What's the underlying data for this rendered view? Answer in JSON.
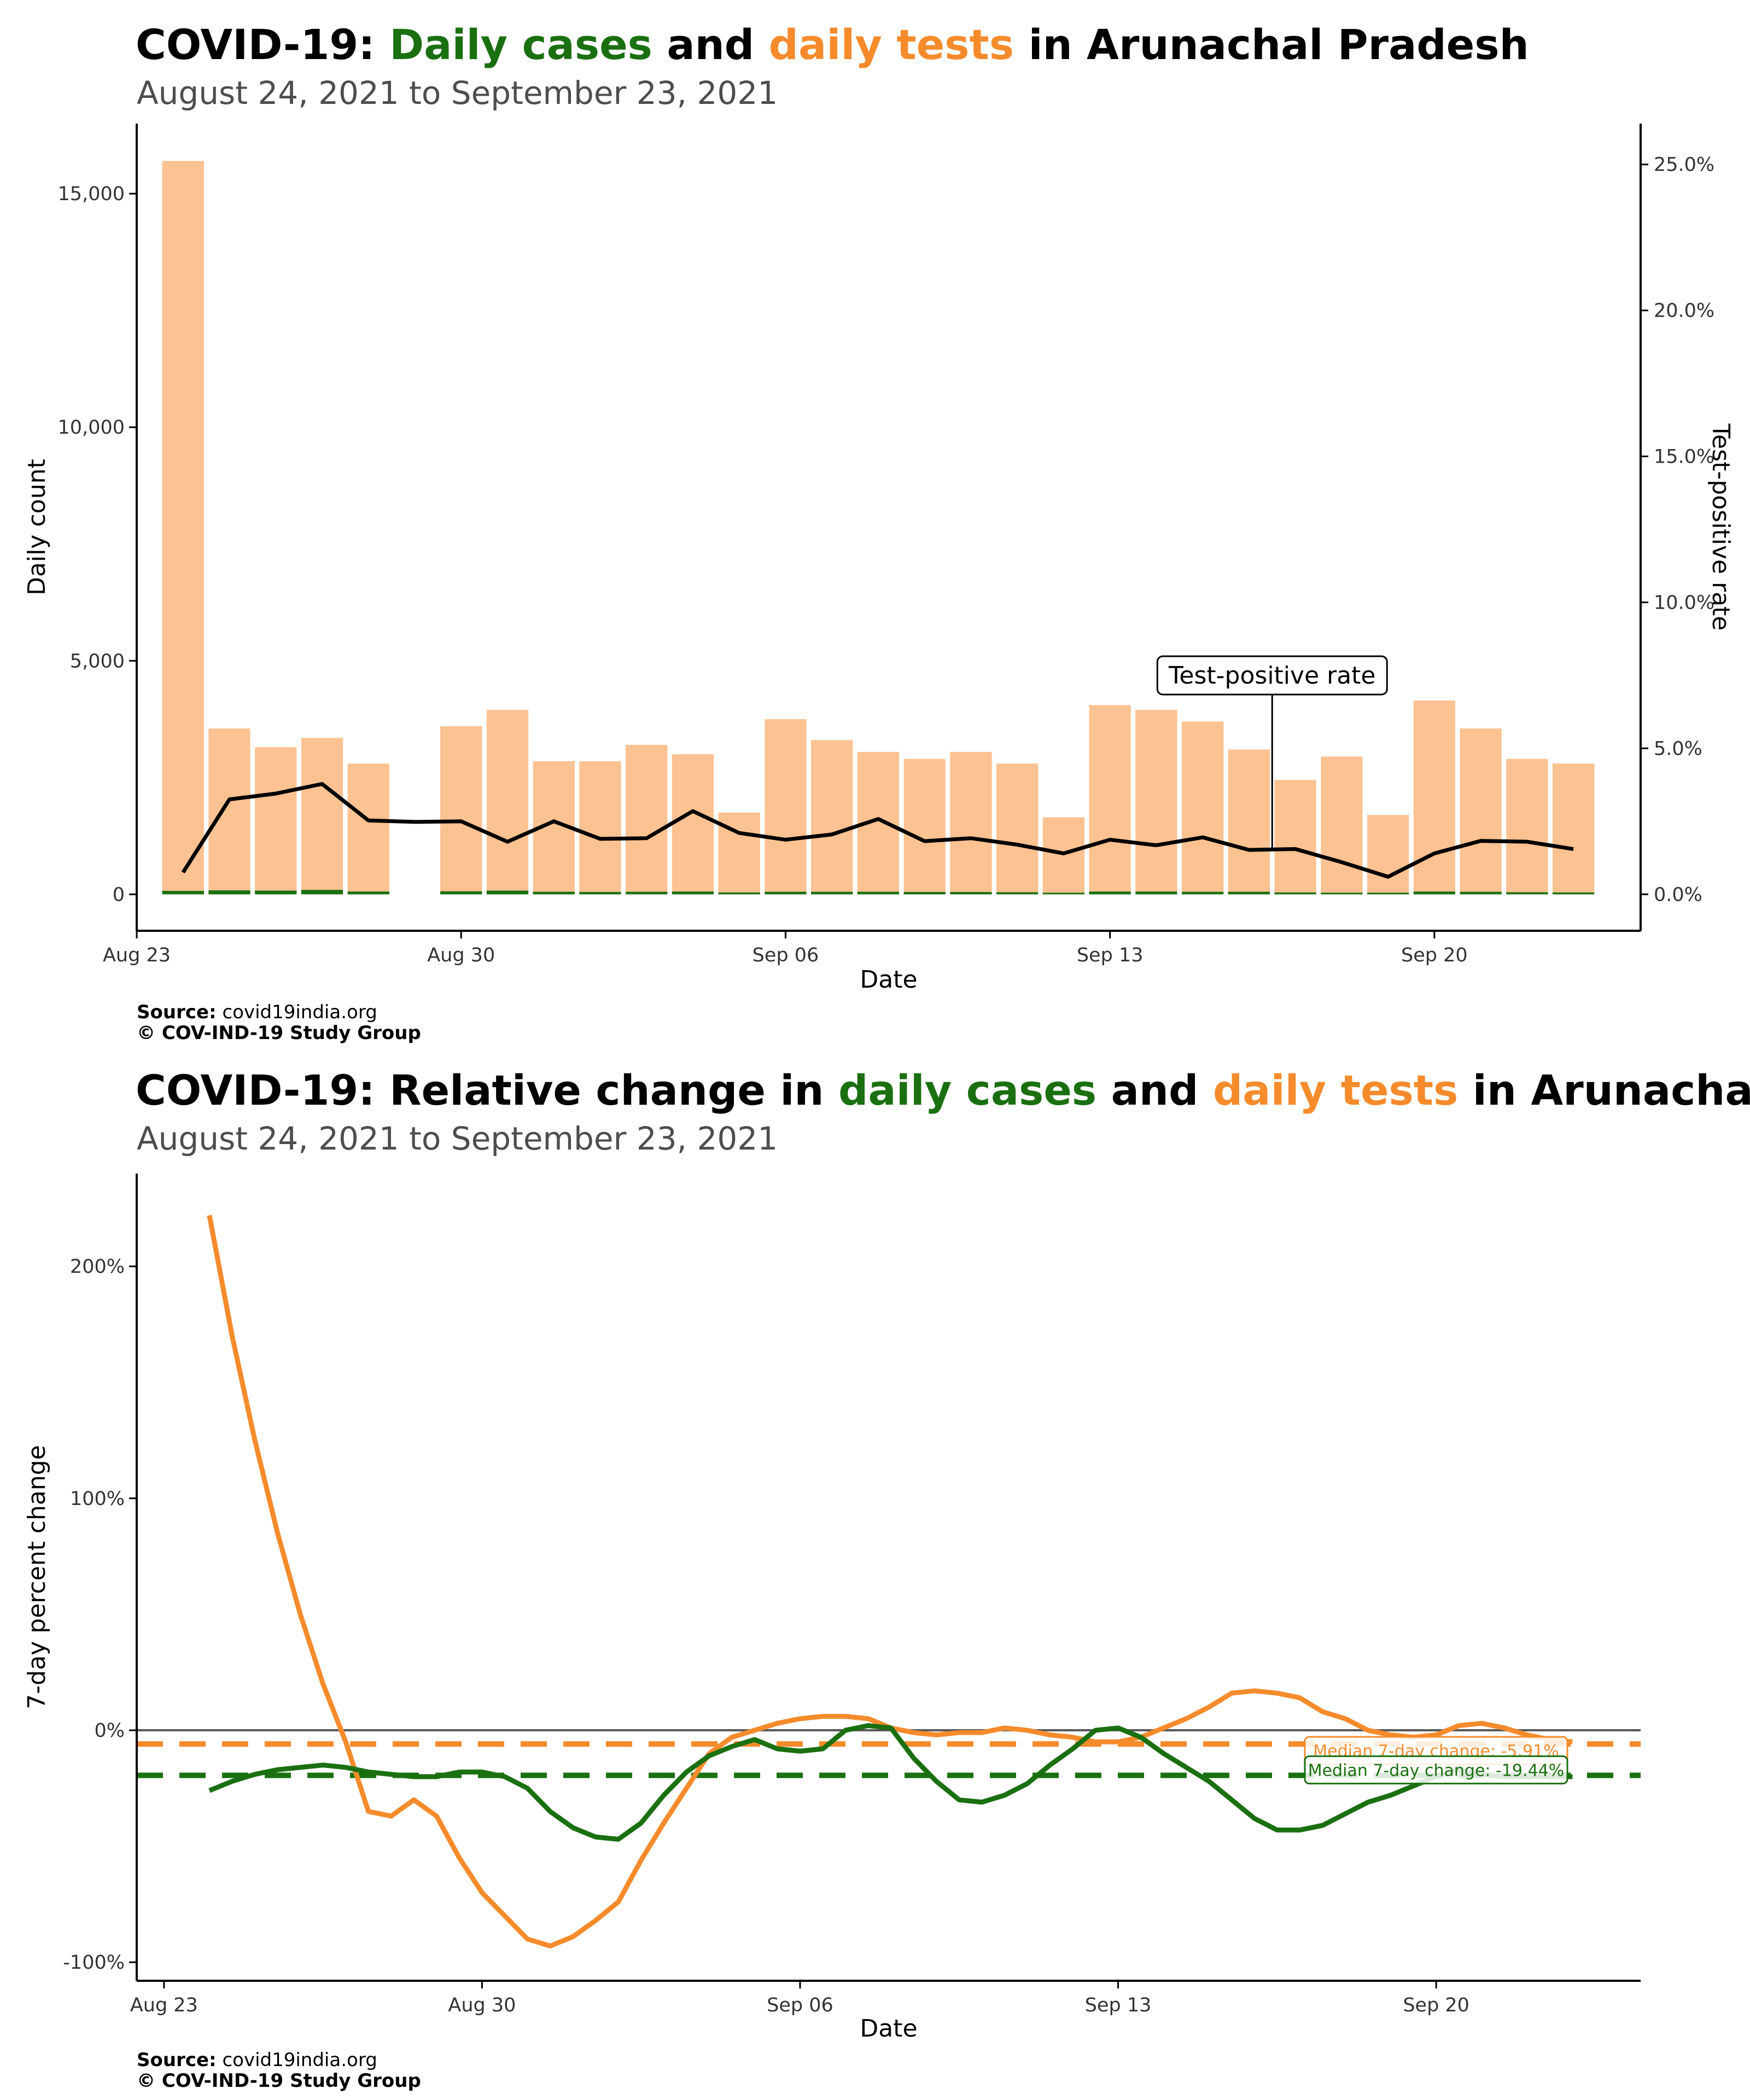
{
  "colors": {
    "cases": "#1a7010",
    "tests": "#f68b2c",
    "tests_bar": "#fdc291",
    "tpr": "#000000"
  },
  "top": {
    "title_parts": [
      {
        "text": "COVID-19: ",
        "color": "#000000"
      },
      {
        "text": "Daily cases",
        "color": "#1a7010"
      },
      {
        "text": " and ",
        "color": "#000000"
      },
      {
        "text": "daily tests",
        "color": "#f68b2c"
      },
      {
        "text": " in Arunachal Pradesh",
        "color": "#000000"
      }
    ],
    "subtitle": "August 24, 2021 to September 23, 2021",
    "source_label": "Source:",
    "source_value": " covid19india.org",
    "copyright": "© COV-IND-19 Study Group"
  },
  "bottom": {
    "title_parts": [
      {
        "text": "COVID-19: Relative change in ",
        "color": "#000000"
      },
      {
        "text": "daily cases",
        "color": "#1a7010"
      },
      {
        "text": " and ",
        "color": "#000000"
      },
      {
        "text": "daily tests",
        "color": "#f68b2c"
      },
      {
        "text": " in Arunachal Pradesh",
        "color": "#000000"
      }
    ],
    "subtitle": "August 24, 2021 to September 23, 2021",
    "source_label": "Source:",
    "source_value": " covid19india.org",
    "copyright": "© COV-IND-19 Study Group"
  },
  "chart_data": [
    {
      "type": "bar",
      "xlabel": "Date",
      "ylabel": "Daily count",
      "y2label": "Test-positive rate",
      "ylim": [
        -780,
        16500
      ],
      "y2lim": [
        -0.0125,
        0.264
      ],
      "y_ticks": [
        0,
        5000,
        10000,
        15000
      ],
      "y_tick_labels": [
        "0",
        "5,000",
        "10,000",
        "15,000"
      ],
      "y2_ticks": [
        0,
        0.05,
        0.1,
        0.15,
        0.2,
        0.25
      ],
      "y2_tick_labels": [
        "0.0%",
        "5.0%",
        "10.0%",
        "15.0%",
        "20.0%",
        "25.0%"
      ],
      "x_start": "Aug 23",
      "x_ticks": [
        0,
        7,
        14,
        21,
        28
      ],
      "x_tick_labels": [
        "Aug 23",
        "Aug 30",
        "Sep 06",
        "Sep 13",
        "Sep 20"
      ],
      "annotation": {
        "text": "Test-positive rate",
        "day": 24.5,
        "tpr": 0.0155
      },
      "days": [
        1,
        2,
        3,
        4,
        5,
        6,
        7,
        8,
        9,
        10,
        11,
        12,
        13,
        14,
        15,
        16,
        17,
        18,
        19,
        20,
        21,
        22,
        23,
        24,
        25,
        26,
        27,
        28,
        29,
        30,
        31
      ],
      "dates": [
        "Aug 24",
        "Aug 25",
        "Aug 26",
        "Aug 27",
        "Aug 28",
        "Aug 29",
        "Aug 30",
        "Aug 31",
        "Sep 01",
        "Sep 02",
        "Sep 03",
        "Sep 04",
        "Sep 05",
        "Sep 06",
        "Sep 07",
        "Sep 08",
        "Sep 09",
        "Sep 10",
        "Sep 11",
        "Sep 12",
        "Sep 13",
        "Sep 14",
        "Sep 15",
        "Sep 16",
        "Sep 17",
        "Sep 18",
        "Sep 19",
        "Sep 20",
        "Sep 21",
        "Sep 22",
        "Sep 23"
      ],
      "tests": [
        15700,
        3550,
        3150,
        3350,
        2800,
        0,
        3600,
        3950,
        2850,
        2850,
        3200,
        3000,
        1750,
        3750,
        3300,
        3050,
        2900,
        3050,
        2800,
        1650,
        4050,
        3950,
        3700,
        3100,
        2450,
        2950,
        1700,
        4150,
        3550,
        2900,
        2800
      ],
      "cases": [
        75,
        85,
        80,
        95,
        60,
        0,
        65,
        80,
        55,
        50,
        55,
        60,
        40,
        55,
        55,
        55,
        50,
        50,
        45,
        35,
        60,
        60,
        55,
        55,
        40,
        35,
        25,
        60,
        55,
        45,
        40
      ],
      "tpr": [
        0.0075,
        0.0325,
        0.0345,
        0.0378,
        0.0253,
        0.0248,
        0.025,
        0.018,
        0.025,
        0.019,
        0.0192,
        0.0285,
        0.021,
        0.0187,
        0.0205,
        0.0258,
        0.0182,
        0.0192,
        0.017,
        0.014,
        0.0187,
        0.0168,
        0.0195,
        0.0152,
        0.0155,
        0.011,
        0.006,
        0.014,
        0.0183,
        0.018,
        0.0155
      ]
    },
    {
      "type": "line",
      "xlabel": "Date",
      "ylabel": "7-day percent change",
      "ylim": [
        -108,
        240
      ],
      "y_ticks": [
        -100,
        0,
        100,
        200
      ],
      "y_tick_labels": [
        "-100%",
        "0%",
        "100%",
        "200%"
      ],
      "x_ticks": [
        0,
        7,
        14,
        21,
        28
      ],
      "x_tick_labels": [
        "Aug 23",
        "Aug 30",
        "Sep 06",
        "Sep 13",
        "Sep 20"
      ],
      "series": [
        {
          "key": "tests",
          "x": [
            1,
            1.5,
            2,
            2.5,
            3,
            3.5,
            4,
            4.5,
            5,
            5.5,
            6,
            6.5,
            7,
            7.5,
            8,
            8.5,
            9,
            9.5,
            10,
            10.5,
            11,
            11.5,
            12,
            12.5,
            13,
            13.5,
            14,
            14.5,
            15,
            15.5,
            16,
            16.5,
            17,
            17.5,
            18,
            18.5,
            19,
            19.5,
            20,
            20.5,
            21,
            21.5,
            22,
            22.5,
            23,
            23.5,
            24,
            24.5,
            25,
            25.5,
            26,
            26.5,
            27,
            27.5,
            28,
            28.5,
            29,
            29.5,
            30,
            30.5,
            31
          ],
          "values": [
            222,
            170,
            125,
            85,
            50,
            20,
            -5,
            -35,
            -37,
            -30,
            -37,
            -55,
            -70,
            -80,
            -90,
            -93,
            -89,
            -82,
            -74,
            -56,
            -40,
            -25,
            -10,
            -3,
            0,
            3,
            5,
            6,
            6,
            5,
            1,
            -1,
            -2,
            -1,
            -1,
            1,
            0,
            -2,
            -3,
            -5,
            -5,
            -3,
            1,
            5,
            10,
            16,
            17,
            16,
            14,
            8,
            5,
            0,
            -2,
            -3,
            -2,
            2,
            3,
            1,
            -2,
            -4,
            -5
          ],
          "median": -5.91,
          "median_label": "Median 7-day change: -5.91%"
        },
        {
          "key": "cases",
          "x": [
            1,
            1.5,
            2,
            2.5,
            3,
            3.5,
            4,
            4.5,
            5,
            5.5,
            6,
            6.5,
            7,
            7.5,
            8,
            8.5,
            9,
            9.5,
            10,
            10.5,
            11,
            11.5,
            12,
            12.5,
            13,
            13.5,
            14,
            14.5,
            15,
            15.5,
            16,
            16.5,
            17,
            17.5,
            18,
            18.5,
            19,
            19.5,
            20,
            20.5,
            21,
            21.5,
            22,
            22.5,
            23,
            23.5,
            24,
            24.5,
            25,
            25.5,
            26,
            26.5,
            27,
            27.5,
            28,
            28.5,
            29,
            29.5,
            30,
            30.5,
            31
          ],
          "values": [
            -26,
            -22,
            -19,
            -17,
            -16,
            -15,
            -16,
            -18,
            -19,
            -20,
            -20,
            -18,
            -18,
            -20,
            -25,
            -35,
            -42,
            -46,
            -47,
            -40,
            -28,
            -18,
            -11,
            -7,
            -4,
            -8,
            -9,
            -8,
            0,
            2,
            1,
            -12,
            -22,
            -30,
            -31,
            -28,
            -23,
            -15,
            -8,
            0,
            1,
            -3,
            -10,
            -16,
            -22,
            -30,
            -38,
            -43,
            -43,
            -41,
            -36,
            -31,
            -28,
            -24,
            -20,
            -17,
            -19,
            -20,
            -20,
            -20,
            -20
          ],
          "median": -19.44,
          "median_label": "Median 7-day change: -19.44%"
        }
      ]
    }
  ]
}
